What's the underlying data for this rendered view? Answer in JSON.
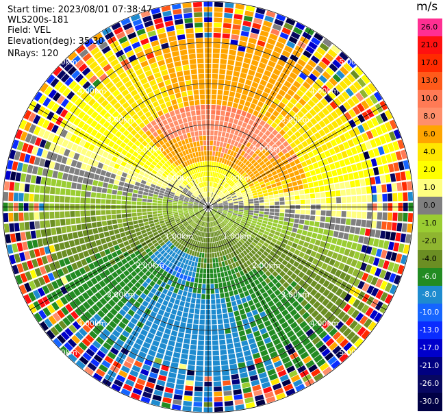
{
  "header": {
    "start_time": "Start time: 2023/08/01 07:38:47",
    "instrument": "WLS200s-181",
    "field": "Field: VEL",
    "elevation": "Elevation(deg): 35.30",
    "nrays": "NRays: 120"
  },
  "colorbar": {
    "unit": "m/s",
    "levels": [
      "26.0",
      "21.0",
      "17.0",
      "13.0",
      "10.0",
      "8.0",
      "6.0",
      "4.0",
      "2.0",
      "1.0",
      "0.0",
      "-1.0",
      "-2.0",
      "-4.0",
      "-6.0",
      "-8.0",
      "-10.0",
      "-13.0",
      "-17.0",
      "-21.0",
      "-26.0",
      "-30.0"
    ],
    "colors": [
      "#ff2f92",
      "#ff1010",
      "#ff2a00",
      "#ff5a1a",
      "#ff7a55",
      "#ff8f6a",
      "#ffa500",
      "#ffe600",
      "#ffff00",
      "#ffff80",
      "#7f7f7f",
      "#9acd32",
      "#8fb530",
      "#6b8e23",
      "#228b22",
      "#1e8bcf",
      "#1565ff",
      "#0a2cff",
      "#0000cc",
      "#000080",
      "#070760",
      "#000044"
    ],
    "text_colors": [
      "#000",
      "#000",
      "#000",
      "#000",
      "#000",
      "#000",
      "#000",
      "#000",
      "#000",
      "#000",
      "#000",
      "#000",
      "#000",
      "#000",
      "#fff",
      "#fff",
      "#fff",
      "#fff",
      "#fff",
      "#fff",
      "#fff",
      "#fff"
    ]
  },
  "range_rings": [
    "1.00km",
    "2.00km",
    "3.00km",
    "4.00km",
    "5.00km"
  ]
}
